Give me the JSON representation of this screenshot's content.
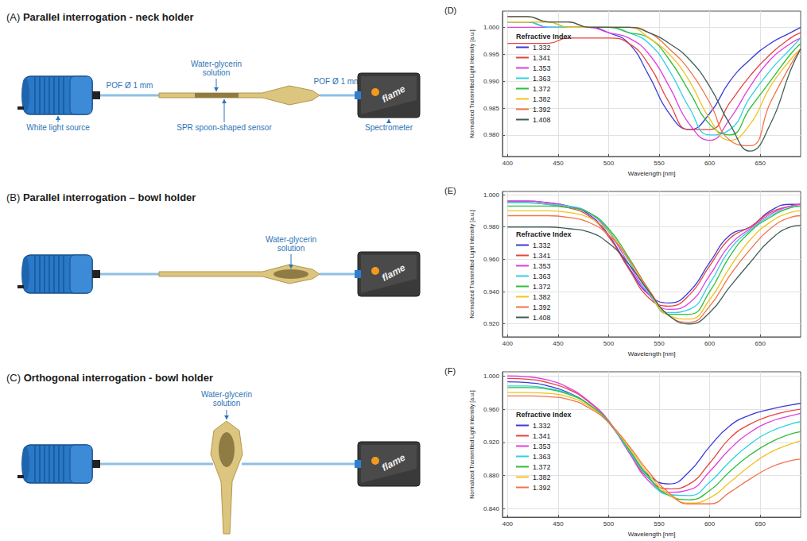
{
  "diagrams": [
    {
      "letter": "(A)",
      "title": "Parallel interrogation - neck holder",
      "source": "White light source",
      "fiber_in": "POF Ø 1 mm",
      "fiber_out": "POF Ø 1 mm",
      "solution": "Water-glycerin solution",
      "sensor": "SPR spoon-shaped sensor",
      "detector": "Spectrometer",
      "brand": "flame"
    },
    {
      "letter": "(B)",
      "title": "Parallel interrogation – bowl holder",
      "solution": "Water-glycerin solution",
      "brand": "flame"
    },
    {
      "letter": "(C)",
      "title": "Orthogonal interrogation - bowl holder",
      "solution": "Water-glycerin solution",
      "brand": "flame"
    }
  ],
  "chart_data": [
    {
      "type": "line",
      "title": "(D)",
      "x_label": "Wavelength [nm]",
      "y_label": "Normalized Transmitted Light Intensity [a.u.]",
      "legend_title": "Refractive Index",
      "legend": "left",
      "grid": true,
      "x": [
        400,
        420,
        440,
        460,
        480,
        500,
        520,
        540,
        560,
        580,
        600,
        620,
        640,
        660,
        680,
        690
      ],
      "xlim": [
        395,
        690
      ],
      "xticks": [
        400,
        450,
        500,
        550,
        600,
        650
      ],
      "ylim": [
        0.976,
        1.003
      ],
      "yticks": [
        {
          "value": 0.98,
          "label": "0.980"
        },
        {
          "value": 0.985,
          "label": "0.985"
        },
        {
          "value": 0.99,
          "label": "0.990"
        },
        {
          "value": 0.995,
          "label": "0.995"
        },
        {
          "value": 1,
          "label": "1.000"
        }
      ],
      "series": [
        {
          "name": "1.332",
          "color": "#3b3bdb",
          "values": [
            1.001,
            1.001,
            1.0,
            1.0,
            1.0,
            0.999,
            0.997,
            0.991,
            0.984,
            0.981,
            0.984,
            0.99,
            0.994,
            0.997,
            0.999,
            1.0
          ]
        },
        {
          "name": "1.341",
          "color": "#e8423f",
          "values": [
            0.997,
            0.997,
            0.997,
            0.998,
            0.998,
            0.998,
            0.997,
            0.993,
            0.986,
            0.981,
            0.981,
            0.986,
            0.991,
            0.995,
            0.998,
            0.999
          ]
        },
        {
          "name": "1.353",
          "color": "#e03ee0",
          "values": [
            1.0,
            1.0,
            1.0,
            1.0,
            1.0,
            0.999,
            0.998,
            0.995,
            0.989,
            0.982,
            0.979,
            0.983,
            0.989,
            0.994,
            0.997,
            0.998
          ]
        },
        {
          "name": "1.363",
          "color": "#2fd0e6",
          "values": [
            1.001,
            1.001,
            1.0,
            1.0,
            1.0,
            1.0,
            0.999,
            0.997,
            0.992,
            0.985,
            0.98,
            0.981,
            0.987,
            0.992,
            0.996,
            0.998
          ]
        },
        {
          "name": "1.372",
          "color": "#2fbf3a",
          "values": [
            1.001,
            1.001,
            1.001,
            1.0,
            1.0,
            1.0,
            0.999,
            0.998,
            0.994,
            0.988,
            0.982,
            0.98,
            0.985,
            0.99,
            0.995,
            0.997
          ]
        },
        {
          "name": "1.382",
          "color": "#f2c21f",
          "values": [
            1.001,
            1.001,
            1.001,
            1.0,
            1.0,
            1.0,
            1.0,
            0.998,
            0.995,
            0.99,
            0.983,
            0.979,
            0.982,
            0.989,
            0.994,
            0.996
          ]
        },
        {
          "name": "1.392",
          "color": "#f2734a",
          "values": [
            1.002,
            1.002,
            1.001,
            1.001,
            1.0,
            1.0,
            1.0,
            0.999,
            0.996,
            0.992,
            0.986,
            0.979,
            0.978,
            0.986,
            0.993,
            0.996
          ]
        },
        {
          "name": "1.408",
          "color": "#3f5f55",
          "values": [
            1.002,
            1.002,
            1.001,
            1.001,
            1.0,
            1.0,
            1.0,
            0.999,
            0.997,
            0.994,
            0.989,
            0.982,
            0.977,
            0.982,
            0.992,
            0.996
          ]
        }
      ]
    },
    {
      "type": "line",
      "title": "(E)",
      "x_label": "Wavelength [nm]",
      "y_label": "Normalized Transmitted Light Intensity [a.u.]",
      "legend_title": "Refractive Index",
      "legend": "left",
      "grid": true,
      "x": [
        400,
        420,
        440,
        460,
        480,
        500,
        520,
        540,
        560,
        580,
        600,
        620,
        640,
        660,
        680,
        690
      ],
      "xlim": [
        395,
        690
      ],
      "xticks": [
        400,
        450,
        500,
        550,
        600,
        650
      ],
      "ylim": [
        0.912,
        1.002
      ],
      "yticks": [
        {
          "value": 0.92,
          "label": "0.920"
        },
        {
          "value": 0.94,
          "label": "0.940"
        },
        {
          "value": 0.96,
          "label": "0.960"
        },
        {
          "value": 0.98,
          "label": "0.980"
        },
        {
          "value": 1,
          "label": "1.000"
        }
      ],
      "series": [
        {
          "name": "1.332",
          "color": "#3b3bdb",
          "values": [
            0.996,
            0.996,
            0.995,
            0.993,
            0.988,
            0.975,
            0.955,
            0.938,
            0.933,
            0.94,
            0.958,
            0.975,
            0.98,
            0.99,
            0.994,
            0.994
          ]
        },
        {
          "name": "1.341",
          "color": "#e8423f",
          "values": [
            0.995,
            0.995,
            0.994,
            0.992,
            0.987,
            0.974,
            0.954,
            0.936,
            0.931,
            0.938,
            0.956,
            0.973,
            0.98,
            0.989,
            0.993,
            0.994
          ]
        },
        {
          "name": "1.353",
          "color": "#e03ee0",
          "values": [
            0.996,
            0.996,
            0.995,
            0.993,
            0.989,
            0.977,
            0.957,
            0.938,
            0.929,
            0.933,
            0.95,
            0.969,
            0.979,
            0.988,
            0.993,
            0.994
          ]
        },
        {
          "name": "1.363",
          "color": "#2fd0e6",
          "values": [
            0.995,
            0.995,
            0.994,
            0.993,
            0.989,
            0.978,
            0.959,
            0.939,
            0.927,
            0.929,
            0.945,
            0.966,
            0.978,
            0.987,
            0.992,
            0.993
          ]
        },
        {
          "name": "1.372",
          "color": "#2fbf3a",
          "values": [
            0.993,
            0.993,
            0.993,
            0.992,
            0.989,
            0.979,
            0.961,
            0.941,
            0.926,
            0.926,
            0.94,
            0.962,
            0.977,
            0.986,
            0.992,
            0.993
          ]
        },
        {
          "name": "1.382",
          "color": "#f2c21f",
          "values": [
            0.99,
            0.99,
            0.99,
            0.989,
            0.986,
            0.977,
            0.96,
            0.94,
            0.925,
            0.923,
            0.935,
            0.955,
            0.972,
            0.983,
            0.989,
            0.99
          ]
        },
        {
          "name": "1.392",
          "color": "#f2734a",
          "values": [
            0.987,
            0.987,
            0.987,
            0.986,
            0.983,
            0.975,
            0.96,
            0.941,
            0.925,
            0.921,
            0.931,
            0.95,
            0.966,
            0.979,
            0.986,
            0.987
          ]
        },
        {
          "name": "1.408",
          "color": "#3f5f55",
          "values": [
            0.98,
            0.98,
            0.98,
            0.979,
            0.977,
            0.97,
            0.957,
            0.94,
            0.925,
            0.92,
            0.927,
            0.943,
            0.958,
            0.972,
            0.98,
            0.981
          ]
        }
      ]
    },
    {
      "type": "line",
      "title": "(F)",
      "x_label": "Wavelength [nm]",
      "y_label": "Normalized Transmitted Light Intensity [a.u.]",
      "legend_title": "Refractive Index",
      "legend": "left",
      "grid": true,
      "x": [
        400,
        420,
        440,
        460,
        480,
        500,
        520,
        540,
        560,
        580,
        600,
        620,
        640,
        660,
        680,
        690
      ],
      "xlim": [
        395,
        690
      ],
      "xticks": [
        400,
        450,
        500,
        550,
        600,
        650
      ],
      "ylim": [
        0.83,
        1.005
      ],
      "yticks": [
        {
          "value": 0.84,
          "label": "0.840"
        },
        {
          "value": 0.88,
          "label": "0.880"
        },
        {
          "value": 0.92,
          "label": "0.920"
        },
        {
          "value": 0.96,
          "label": "0.960"
        },
        {
          "value": 1,
          "label": "1.000"
        }
      ],
      "series": [
        {
          "name": "1.332",
          "color": "#3b3bdb",
          "values": [
            0.993,
            0.992,
            0.988,
            0.98,
            0.966,
            0.944,
            0.91,
            0.88,
            0.87,
            0.885,
            0.915,
            0.94,
            0.953,
            0.96,
            0.965,
            0.967
          ]
        },
        {
          "name": "1.341",
          "color": "#e8423f",
          "values": [
            0.997,
            0.996,
            0.992,
            0.984,
            0.969,
            0.946,
            0.909,
            0.876,
            0.864,
            0.87,
            0.895,
            0.925,
            0.942,
            0.952,
            0.958,
            0.96
          ]
        },
        {
          "name": "1.353",
          "color": "#e03ee0",
          "values": [
            1.0,
            0.999,
            0.995,
            0.986,
            0.97,
            0.946,
            0.908,
            0.873,
            0.86,
            0.863,
            0.885,
            0.912,
            0.932,
            0.945,
            0.952,
            0.955
          ]
        },
        {
          "name": "1.363",
          "color": "#2fd0e6",
          "values": [
            0.988,
            0.988,
            0.985,
            0.979,
            0.966,
            0.945,
            0.91,
            0.876,
            0.857,
            0.856,
            0.872,
            0.897,
            0.918,
            0.933,
            0.942,
            0.945
          ]
        },
        {
          "name": "1.372",
          "color": "#2fbf3a",
          "values": [
            0.986,
            0.986,
            0.984,
            0.978,
            0.966,
            0.945,
            0.912,
            0.878,
            0.856,
            0.851,
            0.862,
            0.885,
            0.905,
            0.92,
            0.93,
            0.933
          ]
        },
        {
          "name": "1.382",
          "color": "#f2c21f",
          "values": [
            0.98,
            0.98,
            0.979,
            0.975,
            0.964,
            0.944,
            0.914,
            0.881,
            0.857,
            0.847,
            0.853,
            0.872,
            0.892,
            0.908,
            0.918,
            0.922
          ]
        },
        {
          "name": "1.392",
          "color": "#f2734a",
          "values": [
            0.976,
            0.976,
            0.975,
            0.972,
            0.962,
            0.944,
            0.916,
            0.884,
            0.859,
            0.846,
            0.846,
            0.86,
            0.876,
            0.89,
            0.898,
            0.9
          ]
        }
      ]
    }
  ]
}
